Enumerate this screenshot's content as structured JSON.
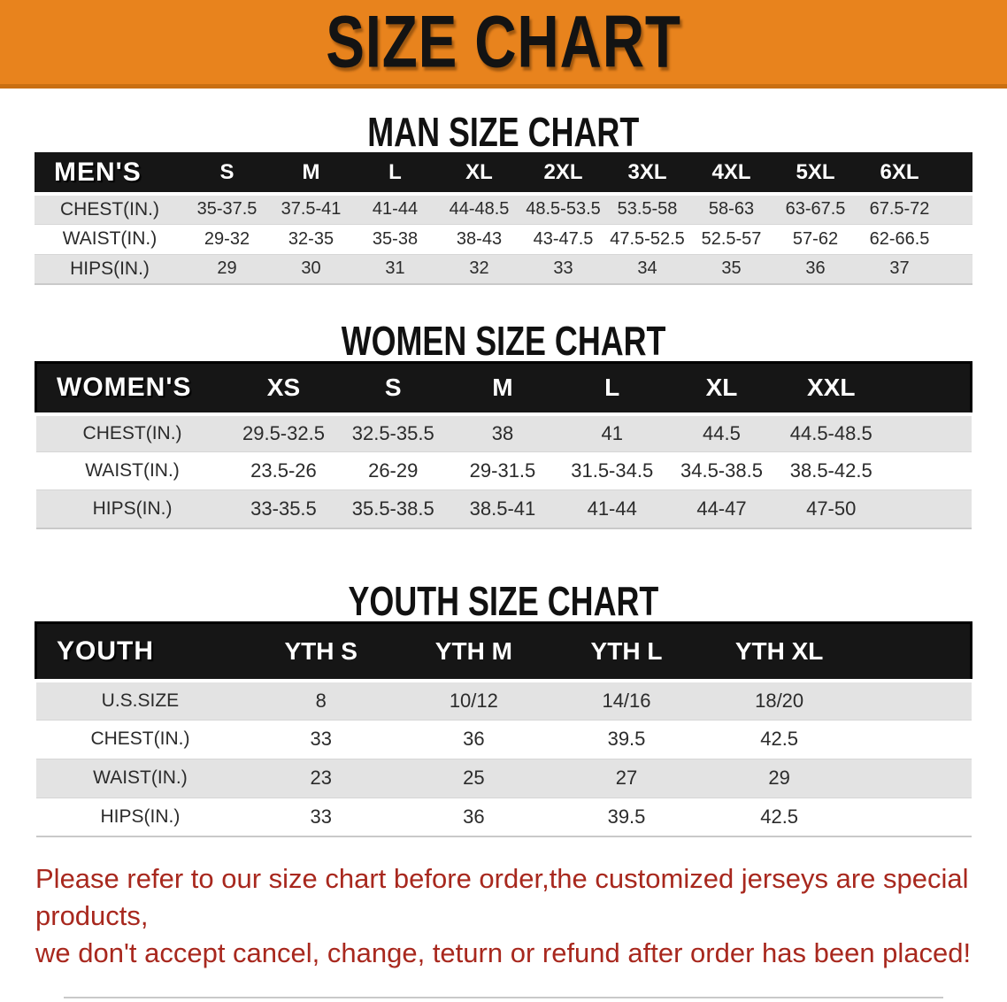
{
  "banner": {
    "title": "SIZE CHART",
    "background_color": "#E8831D",
    "title_color": "#131313"
  },
  "sections": {
    "men": {
      "heading": "MAN SIZE CHART"
    },
    "women": {
      "heading": "WOMEN SIZE CHART"
    },
    "youth": {
      "heading": "YOUTH SIZE CHART"
    }
  },
  "tables": {
    "men": {
      "label": "MEN'S",
      "sizes": [
        "S",
        "M",
        "L",
        "XL",
        "2XL",
        "3XL",
        "4XL",
        "5XL",
        "6XL"
      ],
      "rows": [
        {
          "label": "CHEST(IN.)",
          "values": [
            "35-37.5",
            "37.5-41",
            "41-44",
            "44-48.5",
            "48.5-53.5",
            "53.5-58",
            "58-63",
            "63-67.5",
            "67.5-72"
          ]
        },
        {
          "label": "WAIST(IN.)",
          "values": [
            "29-32",
            "32-35",
            "35-38",
            "38-43",
            "43-47.5",
            "47.5-52.5",
            "52.5-57",
            "57-62",
            "62-66.5"
          ]
        },
        {
          "label": "HIPS(IN.)",
          "values": [
            "29",
            "30",
            "31",
            "32",
            "33",
            "34",
            "35",
            "36",
            "37"
          ]
        }
      ]
    },
    "women": {
      "label": "WOMEN'S",
      "sizes": [
        "XS",
        "S",
        "M",
        "L",
        "XL",
        "XXL"
      ],
      "rows": [
        {
          "label": "CHEST(IN.)",
          "values": [
            "29.5-32.5",
            "32.5-35.5",
            "38",
            "41",
            "44.5",
            "44.5-48.5"
          ]
        },
        {
          "label": "WAIST(IN.)",
          "values": [
            "23.5-26",
            "26-29",
            "29-31.5",
            "31.5-34.5",
            "34.5-38.5",
            "38.5-42.5"
          ]
        },
        {
          "label": "HIPS(IN.)",
          "values": [
            "33-35.5",
            "35.5-38.5",
            "38.5-41",
            "41-44",
            "44-47",
            "47-50"
          ]
        }
      ]
    },
    "youth": {
      "label": "YOUTH",
      "sizes": [
        "YTH S",
        "YTH M",
        "YTH L",
        "YTH XL"
      ],
      "rows": [
        {
          "label": "U.S.SIZE",
          "values": [
            "8",
            "10/12",
            "14/16",
            "18/20"
          ]
        },
        {
          "label": "CHEST(IN.)",
          "values": [
            "33",
            "36",
            "39.5",
            "42.5"
          ]
        },
        {
          "label": "WAIST(IN.)",
          "values": [
            "23",
            "25",
            "27",
            "29"
          ]
        },
        {
          "label": "HIPS(IN.)",
          "values": [
            "33",
            "36",
            "39.5",
            "42.5"
          ]
        }
      ]
    }
  },
  "note": {
    "line1": "Please refer to our size chart before order,the customized jerseys are special products,",
    "line2": "we don't accept cancel, change, teturn or refund after order has been placed!",
    "color": "#A8281E"
  },
  "colors": {
    "header_row_background": "#161616",
    "header_row_text": "#ffffff",
    "stripe_row_background": "#e3e3e3",
    "banner_border": "#c96f12"
  }
}
